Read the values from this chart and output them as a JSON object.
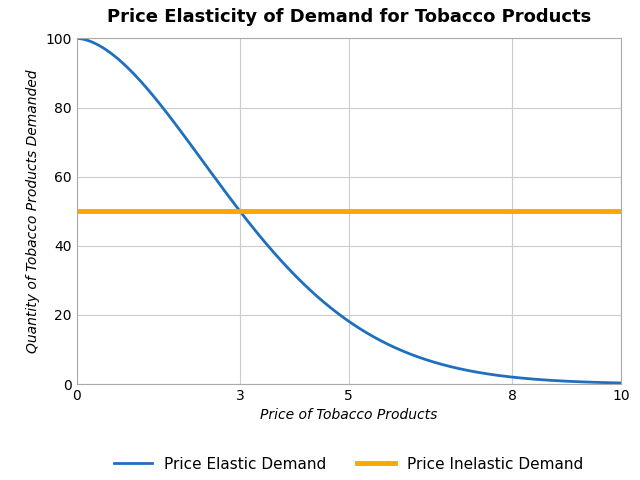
{
  "title": "Price Elasticity of Demand for Tobacco Products",
  "xlabel": "Price of Tobacco Products",
  "ylabel": "Quantity of Tobacco Products Demanded",
  "xlim": [
    0,
    10
  ],
  "ylim": [
    0,
    100
  ],
  "xticks": [
    0,
    3,
    5,
    8,
    10
  ],
  "yticks": [
    0,
    20,
    40,
    60,
    80,
    100
  ],
  "elastic_color": "#1f6fbf",
  "inelastic_color": "#FFA500",
  "inelastic_value": 50,
  "elastic_label": "Price Elastic Demand",
  "inelastic_label": "Price Inelastic Demand",
  "elastic_linewidth": 2.0,
  "inelastic_linewidth": 3.5,
  "title_fontsize": 13,
  "axis_label_fontsize": 10,
  "legend_fontsize": 11,
  "grid_color": "#cccccc",
  "background_color": "#ffffff"
}
